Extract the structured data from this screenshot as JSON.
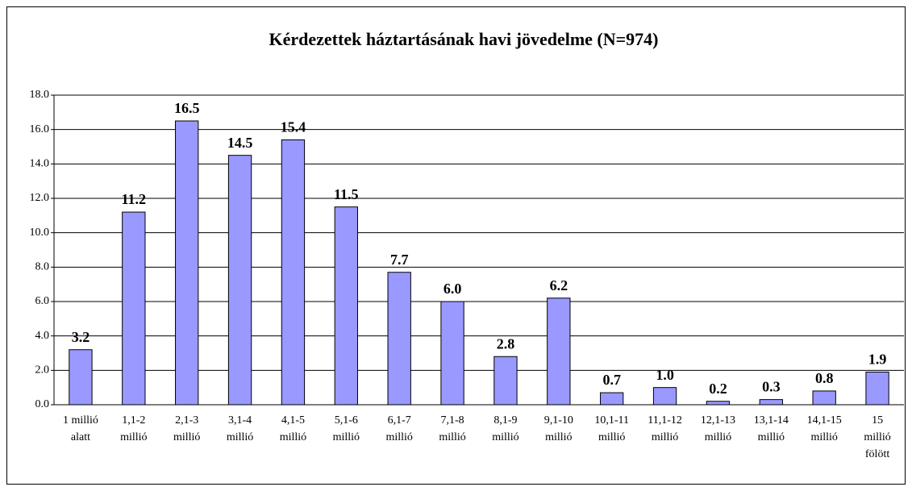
{
  "chart_data": {
    "type": "bar",
    "title": "Kérdezettek háztartásának havi jövedelme (N=974)",
    "categories": [
      [
        "1 millió",
        "alatt"
      ],
      [
        "1,1-2",
        "millió"
      ],
      [
        "2,1-3",
        "millió"
      ],
      [
        "3,1-4",
        "millió"
      ],
      [
        "4,1-5",
        "millió"
      ],
      [
        "5,1-6",
        "millió"
      ],
      [
        "6,1-7",
        "millió"
      ],
      [
        "7,1-8",
        "millió"
      ],
      [
        "8,1-9",
        "millió"
      ],
      [
        "9,1-10",
        "millió"
      ],
      [
        "10,1-11",
        "millió"
      ],
      [
        "11,1-12",
        "millió"
      ],
      [
        "12,1-13",
        "millió"
      ],
      [
        "13,1-14",
        "millió"
      ],
      [
        "14,1-15",
        "millió"
      ],
      [
        "15",
        "millió",
        "fölött"
      ]
    ],
    "values": [
      3.2,
      11.2,
      16.5,
      14.5,
      15.4,
      11.5,
      7.7,
      6.0,
      2.8,
      6.2,
      0.7,
      1.0,
      0.2,
      0.3,
      0.8,
      1.9
    ],
    "value_labels": [
      "3.2",
      "11.2",
      "16.5",
      "14.5",
      "15.4",
      "11.5",
      "7.7",
      "6.0",
      "2.8",
      "6.2",
      "0.7",
      "1.0",
      "0.2",
      "0.3",
      "0.8",
      "1.9"
    ],
    "color": "#9999ff",
    "ylim": [
      0,
      18
    ],
    "yticks": [
      {
        "value": 0,
        "label": "0.0"
      },
      {
        "value": 2,
        "label": "2.0"
      },
      {
        "value": 4,
        "label": "4.0"
      },
      {
        "value": 6,
        "label": "6.0"
      },
      {
        "value": 8,
        "label": "8.0"
      },
      {
        "value": 10,
        "label": "10.0"
      },
      {
        "value": 12,
        "label": "12.0"
      },
      {
        "value": 14,
        "label": "14.0"
      },
      {
        "value": 16,
        "label": "16.0"
      },
      {
        "value": 18,
        "label": "18.0"
      }
    ],
    "grid": true
  }
}
